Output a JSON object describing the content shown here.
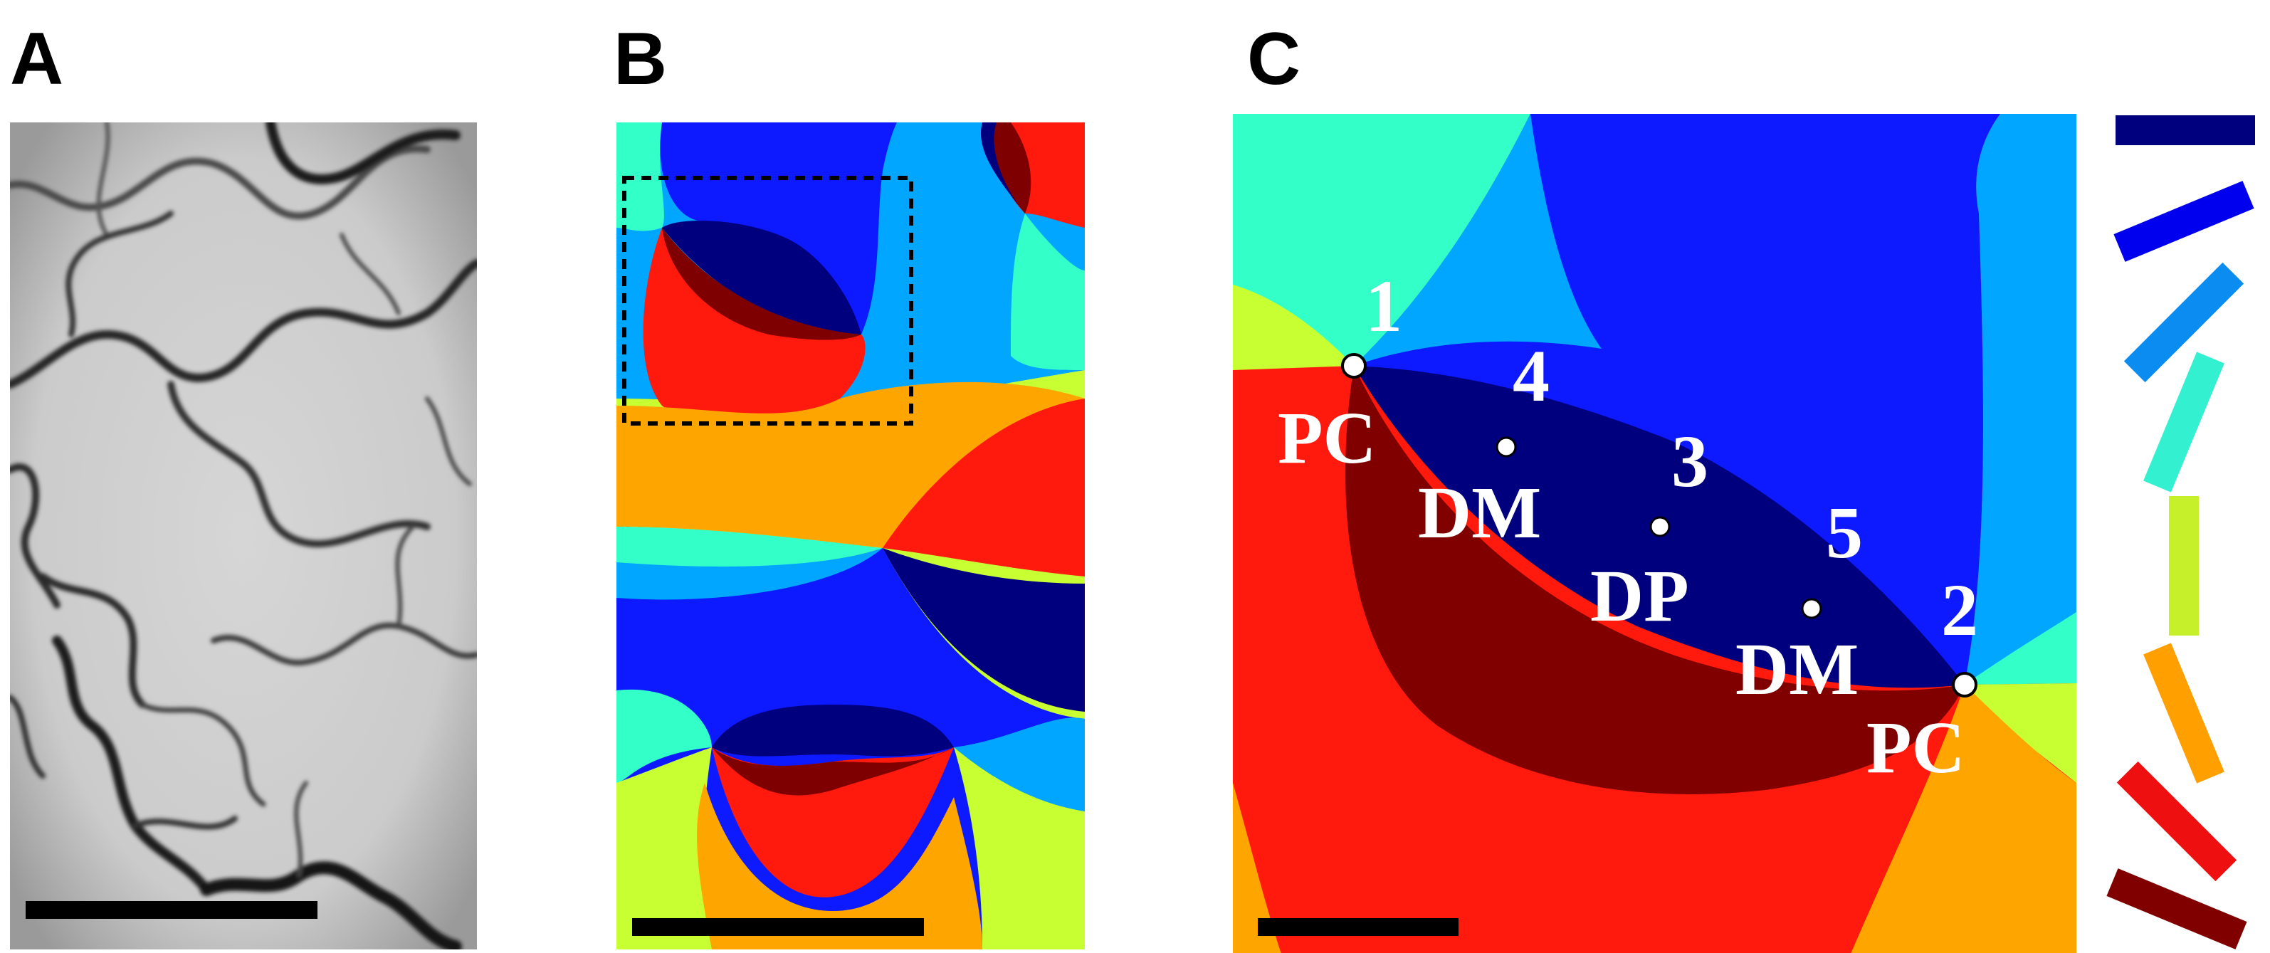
{
  "panels": [
    {
      "id": "A",
      "label": "A"
    },
    {
      "id": "B",
      "label": "B"
    },
    {
      "id": "C",
      "label": "C"
    }
  ],
  "panel_c": {
    "singularities": [
      {
        "number": "1",
        "type": "PC"
      },
      {
        "number": "2",
        "type": "PC"
      }
    ],
    "points": [
      {
        "number": "4",
        "type": "DM"
      },
      {
        "number": "3",
        "type": "DP"
      },
      {
        "number": "5",
        "type": "DM"
      }
    ]
  },
  "orientation_legend": {
    "colors": [
      "#00007f",
      "#0000ee",
      "#0a8cf0",
      "#33f0d0",
      "#c6f02a",
      "#ffa000",
      "#ee1010",
      "#800000"
    ]
  },
  "colors": {
    "dark_blue": "#00007f",
    "blue": "#0d19ff",
    "light_blue": "#00a6ff",
    "cyan": "#33ffc8",
    "yellow_green": "#c8ff33",
    "orange": "#ffa500",
    "red": "#ff1a0d",
    "dark_red": "#7f0000"
  }
}
